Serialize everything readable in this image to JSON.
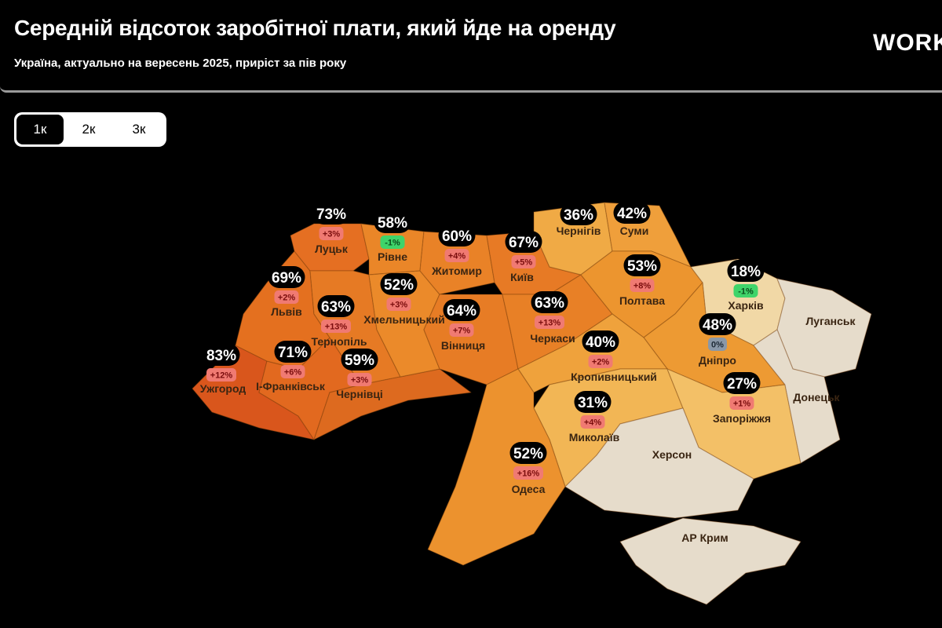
{
  "header": {
    "title": "Середній відсоток заробітної плати, який йде на оренду",
    "subtitle": "Україна, актуально на вересень 2025, приріст за пів року",
    "logo": "WORK"
  },
  "toggle": {
    "options": [
      "1к",
      "2к",
      "3к"
    ],
    "selected": "1к"
  },
  "colors": {
    "change_up_bg": "#f07a72",
    "change_up_text": "#7a0d0d",
    "change_down_bg": "#3fd46a",
    "change_down_text": "#0b4d1c",
    "change_zero_bg": "#8a98a8",
    "occupied": "#e6dccb"
  },
  "regions": [
    {
      "name": "Ужгород",
      "share": "83%",
      "change": "+12%",
      "trend": "up",
      "color": "#d9561c"
    },
    {
      "name": "І-Франківськ",
      "share": "71%",
      "change": "+6%",
      "trend": "up",
      "color": "#e2691f"
    },
    {
      "name": "Львів",
      "share": "69%",
      "change": "+2%",
      "trend": "up",
      "color": "#e4701f"
    },
    {
      "name": "Луцьк",
      "share": "73%",
      "change": "+3%",
      "trend": "up",
      "color": "#e56f22"
    },
    {
      "name": "Тернопіль",
      "share": "63%",
      "change": "+13%",
      "trend": "up",
      "color": "#e67a24"
    },
    {
      "name": "Чернівці",
      "share": "59%",
      "change": "+3%",
      "trend": "up",
      "color": "#dd6a1f"
    },
    {
      "name": "Рівне",
      "share": "58%",
      "change": "-1%",
      "trend": "down",
      "color": "#ea8628"
    },
    {
      "name": "Хмельницький",
      "share": "52%",
      "change": "+3%",
      "trend": "up",
      "color": "#eb8a2a"
    },
    {
      "name": "Житомир",
      "share": "60%",
      "change": "+4%",
      "trend": "up",
      "color": "#e98227"
    },
    {
      "name": "Вінниця",
      "share": "64%",
      "change": "+7%",
      "trend": "up",
      "color": "#e77c25"
    },
    {
      "name": "Київ",
      "share": "67%",
      "change": "+5%",
      "trend": "up",
      "color": "#e77a25"
    },
    {
      "name": "Черкаси",
      "share": "63%",
      "change": "+13%",
      "trend": "up",
      "color": "#e88026"
    },
    {
      "name": "Чернігів",
      "share": "36%",
      "change": "",
      "trend": "none",
      "color": "#f0aa45"
    },
    {
      "name": "Суми",
      "share": "42%",
      "change": "",
      "trend": "none",
      "color": "#ef9f3b"
    },
    {
      "name": "Полтава",
      "share": "53%",
      "change": "+8%",
      "trend": "up",
      "color": "#ec952f"
    },
    {
      "name": "Харків",
      "share": "18%",
      "change": "-1%",
      "trend": "down",
      "color": "#f1d8a6"
    },
    {
      "name": "Дніпро",
      "share": "48%",
      "change": "0%",
      "trend": "zero",
      "color": "#ed9a33"
    },
    {
      "name": "Кропивницький",
      "share": "40%",
      "change": "+2%",
      "trend": "up",
      "color": "#efa23c"
    },
    {
      "name": "Миколаїв",
      "share": "31%",
      "change": "+4%",
      "trend": "up",
      "color": "#f2b655"
    },
    {
      "name": "Одеса",
      "share": "52%",
      "change": "+16%",
      "trend": "up",
      "color": "#ec922e"
    },
    {
      "name": "Запоріжжя",
      "share": "27%",
      "change": "+1%",
      "trend": "up",
      "color": "#f3c067"
    },
    {
      "name": "Луганськ",
      "share": "",
      "change": "",
      "trend": "none",
      "color": "#e6dccb"
    },
    {
      "name": "Донецьк",
      "share": "",
      "change": "",
      "trend": "none",
      "color": "#e6dccb"
    },
    {
      "name": "Херсон",
      "share": "",
      "change": "",
      "trend": "none",
      "color": "#e6dccb"
    },
    {
      "name": "АР Крим",
      "share": "",
      "change": "",
      "trend": "none",
      "color": "#e6dccb"
    }
  ]
}
